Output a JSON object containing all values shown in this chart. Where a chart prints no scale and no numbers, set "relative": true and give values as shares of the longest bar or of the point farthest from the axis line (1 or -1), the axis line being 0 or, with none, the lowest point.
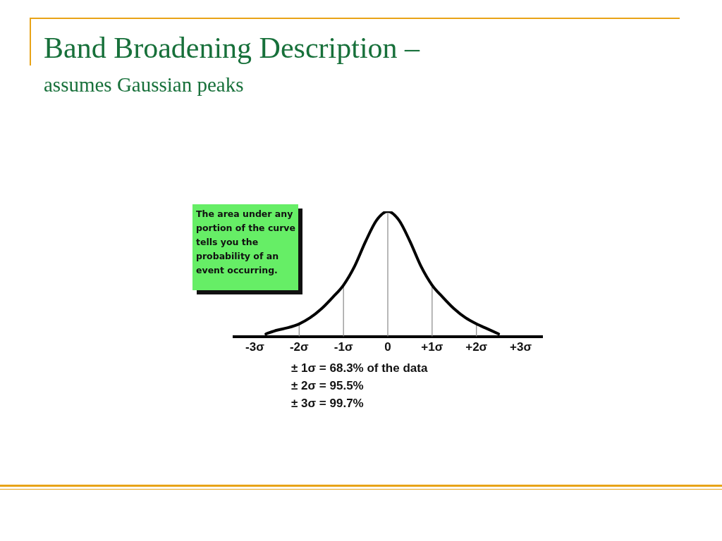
{
  "chart_data": {
    "type": "line",
    "title": "Band Broadening Description –",
    "subtitle": "assumes Gaussian peaks",
    "relative": true,
    "x": [
      -2.75,
      -2.5,
      -2.25,
      -2,
      -1.75,
      -1.5,
      -1.25,
      -1,
      -0.75,
      -0.5,
      -0.25,
      0,
      0.25,
      0.5,
      0.75,
      1,
      1.25,
      1.5,
      1.75,
      2,
      2.25,
      2.5
    ],
    "series": [
      {
        "color": "#000000",
        "values": [
          0.02,
          0.05,
          0.07,
          0.1,
          0.15,
          0.22,
          0.31,
          0.41,
          0.56,
          0.76,
          0.93,
          1,
          0.93,
          0.76,
          0.56,
          0.41,
          0.31,
          0.22,
          0.15,
          0.1,
          0.06,
          0.02
        ]
      }
    ],
    "xlim": [
      -3.5,
      3.5
    ],
    "xticks": [
      {
        "value": -3,
        "label": "-3σ"
      },
      {
        "value": -2,
        "label": "-2σ"
      },
      {
        "value": -1,
        "label": "-1σ"
      },
      0,
      {
        "value": 1,
        "label": "+1σ"
      },
      {
        "value": 2,
        "label": "+2σ"
      },
      {
        "value": 3,
        "label": "+3σ"
      }
    ],
    "ref_lines": [
      {
        "axis": "x",
        "value": -2,
        "color": "#888888"
      },
      {
        "axis": "x",
        "value": -1,
        "color": "#888888"
      },
      {
        "axis": "x",
        "value": 0,
        "color": "#888888"
      },
      {
        "axis": "x",
        "value": 1,
        "color": "#888888"
      },
      {
        "axis": "x",
        "value": 2,
        "color": "#888888"
      }
    ],
    "grid": false,
    "legend": false,
    "marker": "none",
    "line_style": "solid",
    "annotations": [
      "The area under any portion of the curve tells you the probability of an event occurring.",
      "± 1σ = 68.3% of the data",
      "± 2σ = 95.5%",
      "± 3σ = 99.7%"
    ]
  }
}
